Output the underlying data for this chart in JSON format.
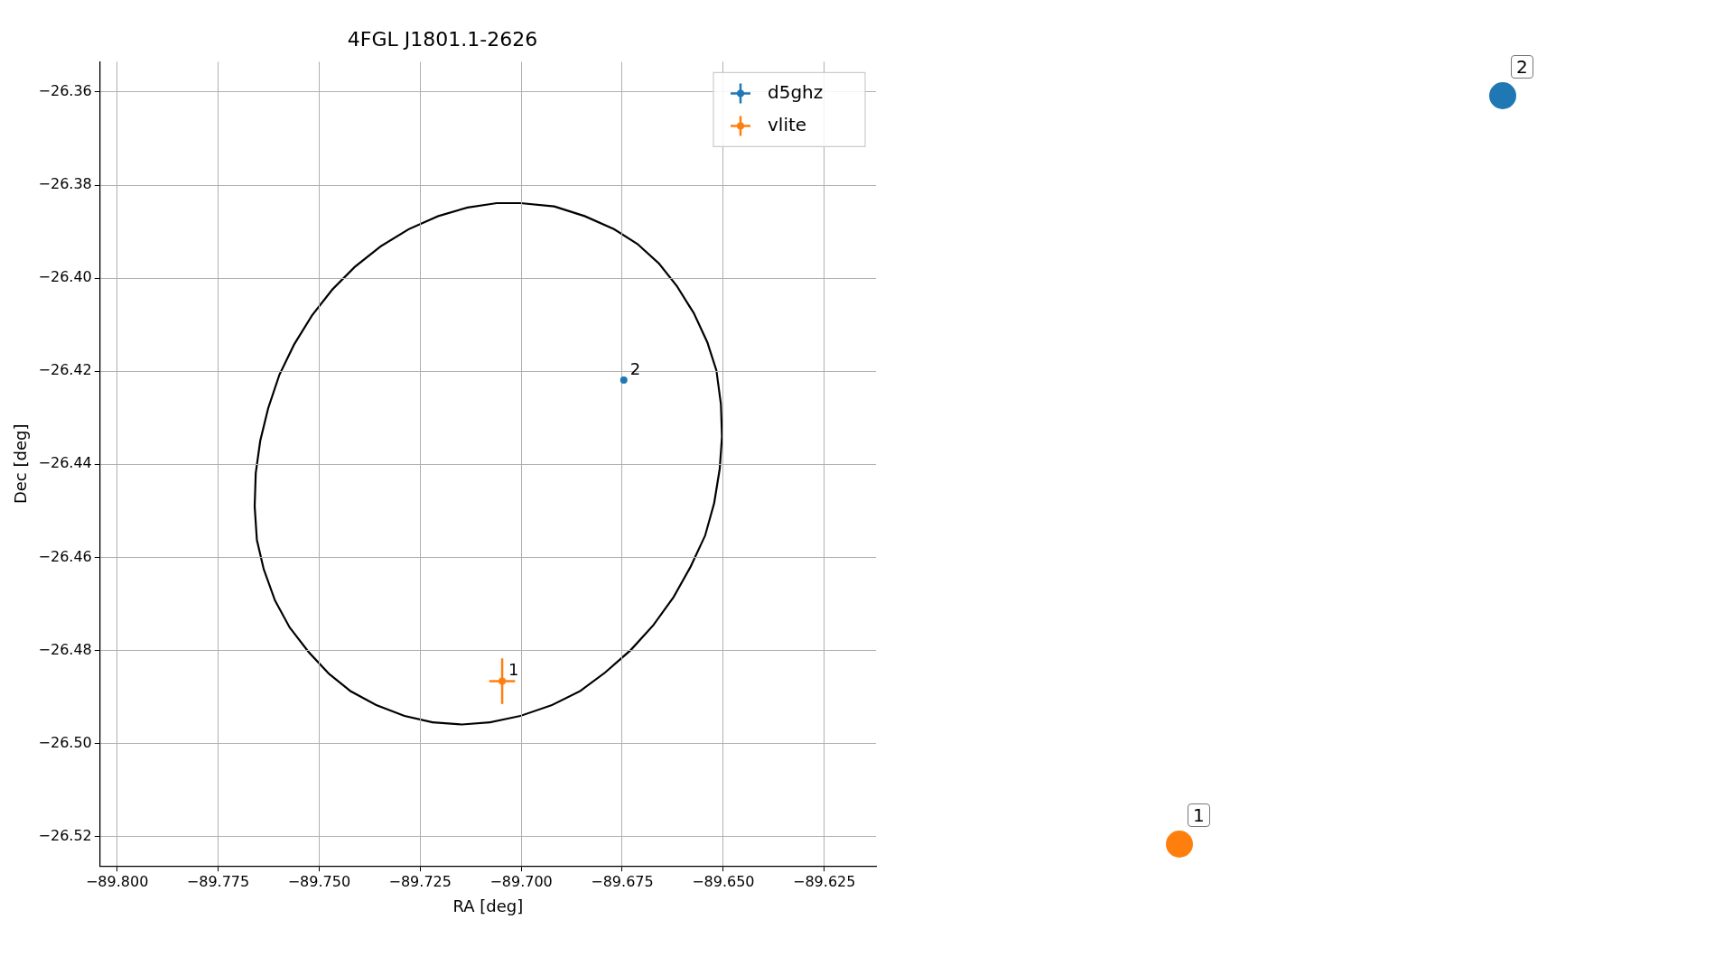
{
  "chart_data": [
    {
      "type": "scatter",
      "title": "4FGL J1801.1-2626",
      "xlabel": "RA [deg]",
      "ylabel": "Dec [deg]",
      "xlim": [
        -89.8042,
        -89.6122
      ],
      "ylim": [
        -26.5263,
        -26.3535
      ],
      "xticks": [
        {
          "value": -89.8,
          "label": "−89.800"
        },
        {
          "value": -89.775,
          "label": "−89.775"
        },
        {
          "value": -89.75,
          "label": "−89.750"
        },
        {
          "value": -89.725,
          "label": "−89.725"
        },
        {
          "value": -89.7,
          "label": "−89.700"
        },
        {
          "value": -89.675,
          "label": "−89.675"
        },
        {
          "value": -89.65,
          "label": "−89.650"
        },
        {
          "value": -89.625,
          "label": "−89.625"
        }
      ],
      "yticks": [
        {
          "value": -26.52,
          "label": "−26.52"
        },
        {
          "value": -26.5,
          "label": "−26.50"
        },
        {
          "value": -26.48,
          "label": "−26.48"
        },
        {
          "value": -26.46,
          "label": "−26.46"
        },
        {
          "value": -26.44,
          "label": "−26.44"
        },
        {
          "value": -26.42,
          "label": "−26.42"
        },
        {
          "value": -26.4,
          "label": "−26.40"
        },
        {
          "value": -26.38,
          "label": "−26.38"
        },
        {
          "value": -26.36,
          "label": "−26.36"
        }
      ],
      "grid": true,
      "legend": "top right",
      "marker": "circle",
      "series": [
        {
          "name": "d5ghz",
          "color": "#1f77b4",
          "x": [
            -89.6746
          ],
          "values": [
            -26.4219
          ]
        },
        {
          "name": "vlite",
          "color": "#ff7f0e",
          "x": [
            -89.7047
          ],
          "values": [
            -26.4866
          ],
          "errors": [
            0.0049
          ],
          "xerrors": [
            0.0032
          ]
        }
      ],
      "annotations": [
        {
          "text": "1",
          "x": -89.7047,
          "y": -26.4866
        },
        {
          "text": "2",
          "x": -89.6746,
          "y": -26.4219
        }
      ]
    },
    {
      "type": "other",
      "annotations": [
        "2",
        "1"
      ]
    }
  ]
}
